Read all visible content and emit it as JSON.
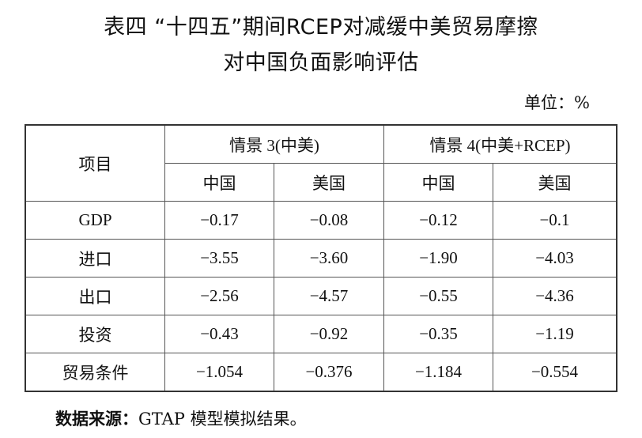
{
  "title_line1": "表四 “十四五”期间RCEP对减缓中美贸易摩擦",
  "title_line2": "对中国负面影响评估",
  "unit": "单位：%",
  "table": {
    "item_header": "项目",
    "scenarios": [
      "情景 3(中美)",
      "情景 4(中美+RCEP)"
    ],
    "countries": [
      "中国",
      "美国",
      "中国",
      "美国"
    ],
    "rows": [
      {
        "label": "GDP",
        "values": [
          "−0.17",
          "−0.08",
          "−0.12",
          "−0.1"
        ]
      },
      {
        "label": "进口",
        "values": [
          "−3.55",
          "−3.60",
          "−1.90",
          "−4.03"
        ]
      },
      {
        "label": "出口",
        "values": [
          "−2.56",
          "−4.57",
          "−0.55",
          "−4.36"
        ]
      },
      {
        "label": "投资",
        "values": [
          "−0.43",
          "−0.92",
          "−0.35",
          "−1.19"
        ]
      },
      {
        "label": "贸易条件",
        "values": [
          "−1.054",
          "−0.376",
          "−1.184",
          "−0.554"
        ]
      }
    ]
  },
  "source_label": "数据来源：",
  "source_text": "GTAP 模型模拟结果。"
}
